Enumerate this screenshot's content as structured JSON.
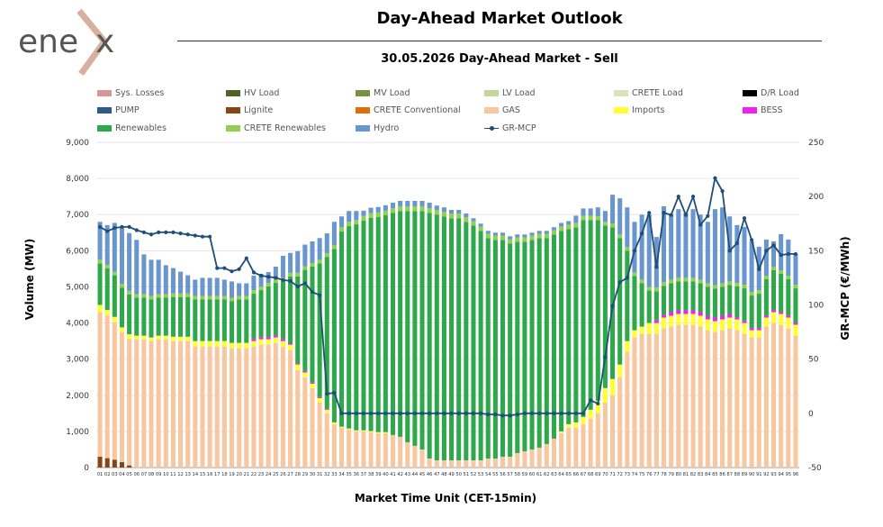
{
  "logo": {
    "text": "enex"
  },
  "header": {
    "title": "Day-Ahead Market Outlook",
    "subtitle": "30.05.2026  Day-Ahead Market - Sell"
  },
  "legend": {
    "rows": [
      [
        {
          "label": "Sys. Losses",
          "color": "#d99694"
        },
        {
          "label": "HV Load",
          "color": "#4f6228"
        },
        {
          "label": "MV Load",
          "color": "#77933c"
        },
        {
          "label": "LV Load",
          "color": "#c3d69b"
        },
        {
          "label": "CRETE Load",
          "color": "#d7e4bd"
        },
        {
          "label": "D/R Load",
          "color": "#000000"
        }
      ],
      [
        {
          "label": "PUMP",
          "color": "#2e5a8a"
        },
        {
          "label": "Lignite",
          "color": "#8b4513"
        },
        {
          "label": "CRETE Conventional",
          "color": "#e36c0a"
        },
        {
          "label": "GAS",
          "color": "#f8c79f"
        },
        {
          "label": "Imports",
          "color": "#ffff33"
        },
        {
          "label": "BESS",
          "color": "#ee22ee"
        }
      ],
      [
        {
          "label": "Renewables",
          "color": "#2ea84a"
        },
        {
          "label": "CRETE Renewables",
          "color": "#92d050"
        },
        {
          "label": "Hydro",
          "color": "#6a96cf"
        },
        {
          "label": "GR-MCP",
          "color": "#1f4e79",
          "line": true
        }
      ]
    ]
  },
  "chart_data": {
    "type": "bar",
    "xlabel": "Market Time Unit (CET-15min)",
    "ylabel": "Volume (MW)",
    "y2label": "GR-MCP (€/MWh)",
    "ylim": [
      0,
      9000
    ],
    "y2lim": [
      -50,
      250
    ],
    "yticks": [
      "0",
      "1,000",
      "2,000",
      "3,000",
      "4,000",
      "5,000",
      "6,000",
      "7,000",
      "8,000",
      "9,000"
    ],
    "y2ticks": [
      "-50",
      "0",
      "50",
      "100",
      "150",
      "200",
      "250"
    ],
    "categories": [
      "01",
      "02",
      "03",
      "04",
      "05",
      "06",
      "07",
      "08",
      "09",
      "10",
      "11",
      "12",
      "13",
      "14",
      "15",
      "16",
      "17",
      "18",
      "19",
      "20",
      "21",
      "22",
      "23",
      "24",
      "25",
      "26",
      "27",
      "28",
      "29",
      "30",
      "31",
      "32",
      "33",
      "34",
      "35",
      "36",
      "37",
      "38",
      "39",
      "40",
      "41",
      "42",
      "43",
      "44",
      "45",
      "46",
      "47",
      "48",
      "49",
      "50",
      "51",
      "52",
      "53",
      "54",
      "55",
      "56",
      "57",
      "58",
      "59",
      "60",
      "61",
      "62",
      "63",
      "64",
      "65",
      "66",
      "67",
      "68",
      "69",
      "70",
      "71",
      "72",
      "73",
      "74",
      "75",
      "76",
      "77",
      "78",
      "79",
      "80",
      "81",
      "82",
      "83",
      "84",
      "85",
      "86",
      "87",
      "88",
      "89",
      "90",
      "91",
      "92",
      "93",
      "94",
      "95",
      "96"
    ],
    "series": [
      {
        "name": "Lignite",
        "color": "#8b4513",
        "values": [
          300,
          260,
          220,
          150,
          60,
          0,
          0,
          0,
          0,
          0,
          0,
          0,
          0,
          0,
          0,
          0,
          0,
          0,
          0,
          0,
          0,
          0,
          0,
          0,
          0,
          0,
          0,
          0,
          0,
          0,
          0,
          0,
          0,
          0,
          0,
          0,
          0,
          0,
          0,
          0,
          0,
          0,
          0,
          0,
          0,
          0,
          0,
          0,
          0,
          0,
          0,
          0,
          0,
          0,
          0,
          0,
          0,
          0,
          0,
          0,
          0,
          0,
          0,
          0,
          0,
          0,
          0,
          0,
          0,
          0,
          0,
          0,
          0,
          0,
          0,
          0,
          0,
          0,
          0,
          0,
          0,
          0,
          0,
          0,
          0,
          0,
          0,
          0,
          0,
          0,
          0,
          0,
          0,
          0,
          0,
          0
        ]
      },
      {
        "name": "GAS",
        "color": "#f8c79f",
        "values": [
          4000,
          3950,
          3800,
          3600,
          3500,
          3550,
          3550,
          3500,
          3550,
          3550,
          3500,
          3500,
          3500,
          3350,
          3350,
          3350,
          3350,
          3350,
          3300,
          3300,
          3300,
          3350,
          3400,
          3400,
          3450,
          3350,
          3250,
          2700,
          2500,
          2200,
          1800,
          1500,
          1200,
          1100,
          1050,
          1000,
          1000,
          980,
          950,
          950,
          900,
          850,
          700,
          600,
          500,
          250,
          200,
          200,
          200,
          200,
          200,
          200,
          200,
          250,
          250,
          300,
          300,
          400,
          450,
          500,
          550,
          650,
          800,
          950,
          1100,
          1100,
          1200,
          1350,
          1500,
          1800,
          2000,
          2500,
          3200,
          3600,
          3700,
          3700,
          3700,
          3850,
          3900,
          3950,
          3950,
          3950,
          3900,
          3800,
          3750,
          3800,
          3850,
          3800,
          3700,
          3600,
          3600,
          3900,
          4000,
          3950,
          3850,
          3650
        ]
      },
      {
        "name": "Imports",
        "color": "#ffff33",
        "values": [
          200,
          150,
          150,
          130,
          130,
          100,
          100,
          100,
          100,
          100,
          120,
          120,
          120,
          150,
          150,
          150,
          150,
          150,
          150,
          150,
          150,
          150,
          150,
          150,
          150,
          150,
          150,
          150,
          130,
          120,
          120,
          100,
          50,
          30,
          30,
          30,
          30,
          30,
          30,
          30,
          0,
          0,
          0,
          0,
          0,
          0,
          0,
          0,
          0,
          0,
          0,
          0,
          0,
          0,
          0,
          0,
          0,
          0,
          0,
          0,
          0,
          0,
          0,
          50,
          100,
          150,
          200,
          250,
          350,
          400,
          450,
          350,
          300,
          200,
          200,
          300,
          300,
          300,
          300,
          300,
          300,
          300,
          300,
          300,
          300,
          300,
          300,
          300,
          300,
          200,
          200,
          250,
          300,
          300,
          300,
          300
        ]
      },
      {
        "name": "BESS",
        "color": "#ee22ee",
        "values": [
          0,
          0,
          0,
          0,
          0,
          0,
          0,
          0,
          0,
          0,
          0,
          0,
          0,
          0,
          0,
          0,
          0,
          0,
          0,
          0,
          0,
          60,
          60,
          60,
          60,
          60,
          40,
          40,
          40,
          40,
          30,
          30,
          0,
          0,
          0,
          0,
          0,
          0,
          0,
          0,
          0,
          0,
          0,
          0,
          0,
          0,
          0,
          0,
          0,
          0,
          0,
          0,
          0,
          0,
          0,
          0,
          0,
          0,
          0,
          0,
          0,
          0,
          0,
          0,
          0,
          0,
          0,
          0,
          0,
          0,
          0,
          0,
          0,
          0,
          0,
          0,
          80,
          80,
          100,
          100,
          100,
          100,
          100,
          100,
          100,
          100,
          100,
          60,
          60,
          60,
          60,
          60,
          60,
          60,
          60,
          60
        ]
      },
      {
        "name": "Renewables",
        "color": "#2ea84a",
        "values": [
          1150,
          1150,
          1150,
          1100,
          1100,
          1050,
          1050,
          1050,
          1050,
          1050,
          1100,
          1100,
          1100,
          1150,
          1150,
          1150,
          1150,
          1150,
          1150,
          1200,
          1200,
          1250,
          1300,
          1400,
          1450,
          1600,
          1850,
          2400,
          2800,
          3200,
          3700,
          4200,
          4800,
          5400,
          5600,
          5700,
          5800,
          5900,
          5950,
          6000,
          6150,
          6250,
          6400,
          6500,
          6600,
          6800,
          6800,
          6750,
          6700,
          6700,
          6600,
          6500,
          6350,
          6100,
          6050,
          6000,
          5900,
          5850,
          5800,
          5800,
          5800,
          5700,
          5650,
          5550,
          5400,
          5400,
          5450,
          5250,
          5000,
          4500,
          4200,
          3500,
          2500,
          1500,
          1200,
          900,
          800,
          800,
          800,
          800,
          800,
          800,
          800,
          800,
          800,
          800,
          800,
          850,
          900,
          900,
          950,
          1000,
          1100,
          1050,
          1000,
          950
        ]
      },
      {
        "name": "CRETE Renewables",
        "color": "#92d050",
        "values": [
          100,
          100,
          100,
          100,
          100,
          100,
          100,
          100,
          100,
          100,
          100,
          100,
          100,
          100,
          100,
          100,
          100,
          100,
          100,
          100,
          100,
          100,
          100,
          100,
          100,
          100,
          100,
          100,
          100,
          100,
          100,
          100,
          100,
          120,
          120,
          120,
          130,
          130,
          130,
          130,
          130,
          130,
          130,
          130,
          130,
          130,
          130,
          130,
          130,
          130,
          130,
          120,
          120,
          120,
          120,
          120,
          120,
          120,
          120,
          120,
          120,
          120,
          120,
          120,
          120,
          120,
          120,
          120,
          100,
          100,
          100,
          100,
          100,
          100,
          100,
          100,
          100,
          100,
          100,
          100,
          100,
          100,
          100,
          100,
          100,
          100,
          100,
          100,
          100,
          100,
          100,
          100,
          100,
          100,
          100,
          100
        ]
      },
      {
        "name": "Hydro",
        "color": "#6a96cf",
        "values": [
          1050,
          1100,
          1350,
          1550,
          1600,
          1500,
          1100,
          1000,
          950,
          800,
          700,
          600,
          500,
          450,
          500,
          500,
          500,
          450,
          450,
          350,
          350,
          400,
          350,
          300,
          350,
          600,
          550,
          600,
          600,
          600,
          600,
          550,
          650,
          300,
          300,
          250,
          150,
          150,
          150,
          150,
          150,
          150,
          150,
          150,
          150,
          150,
          120,
          120,
          100,
          100,
          100,
          80,
          80,
          80,
          80,
          80,
          80,
          80,
          80,
          80,
          80,
          80,
          80,
          100,
          100,
          200,
          200,
          200,
          250,
          300,
          800,
          1000,
          1100,
          1400,
          1800,
          2000,
          1400,
          2100,
          1800,
          1900,
          1800,
          1900,
          1800,
          1700,
          2100,
          2100,
          1800,
          1600,
          1600,
          1400,
          1200,
          1000,
          700,
          1000,
          1000,
          850
        ]
      }
    ],
    "mcp": {
      "name": "GR-MCP",
      "color": "#1f4e79",
      "values": [
        172,
        168,
        171,
        172,
        172,
        169,
        167,
        165,
        167,
        167,
        167,
        166,
        165,
        164,
        163,
        163,
        134,
        134,
        131,
        133,
        143,
        130,
        127,
        126,
        125,
        123,
        122,
        117,
        120,
        112,
        109,
        18,
        19,
        0,
        0,
        0,
        0,
        0,
        0,
        0,
        0,
        0,
        0,
        0,
        0,
        0,
        0,
        0,
        0,
        0,
        0,
        0,
        0,
        -1,
        -1,
        -2,
        -2,
        -1,
        0,
        0,
        0,
        0,
        0,
        0,
        0,
        0,
        0,
        12,
        9,
        52,
        99,
        121,
        125,
        150,
        166,
        185,
        135,
        185,
        183,
        200,
        183,
        200,
        174,
        182,
        217,
        205,
        150,
        157,
        180,
        160,
        133,
        150,
        155,
        146,
        147,
        147
      ]
    }
  }
}
